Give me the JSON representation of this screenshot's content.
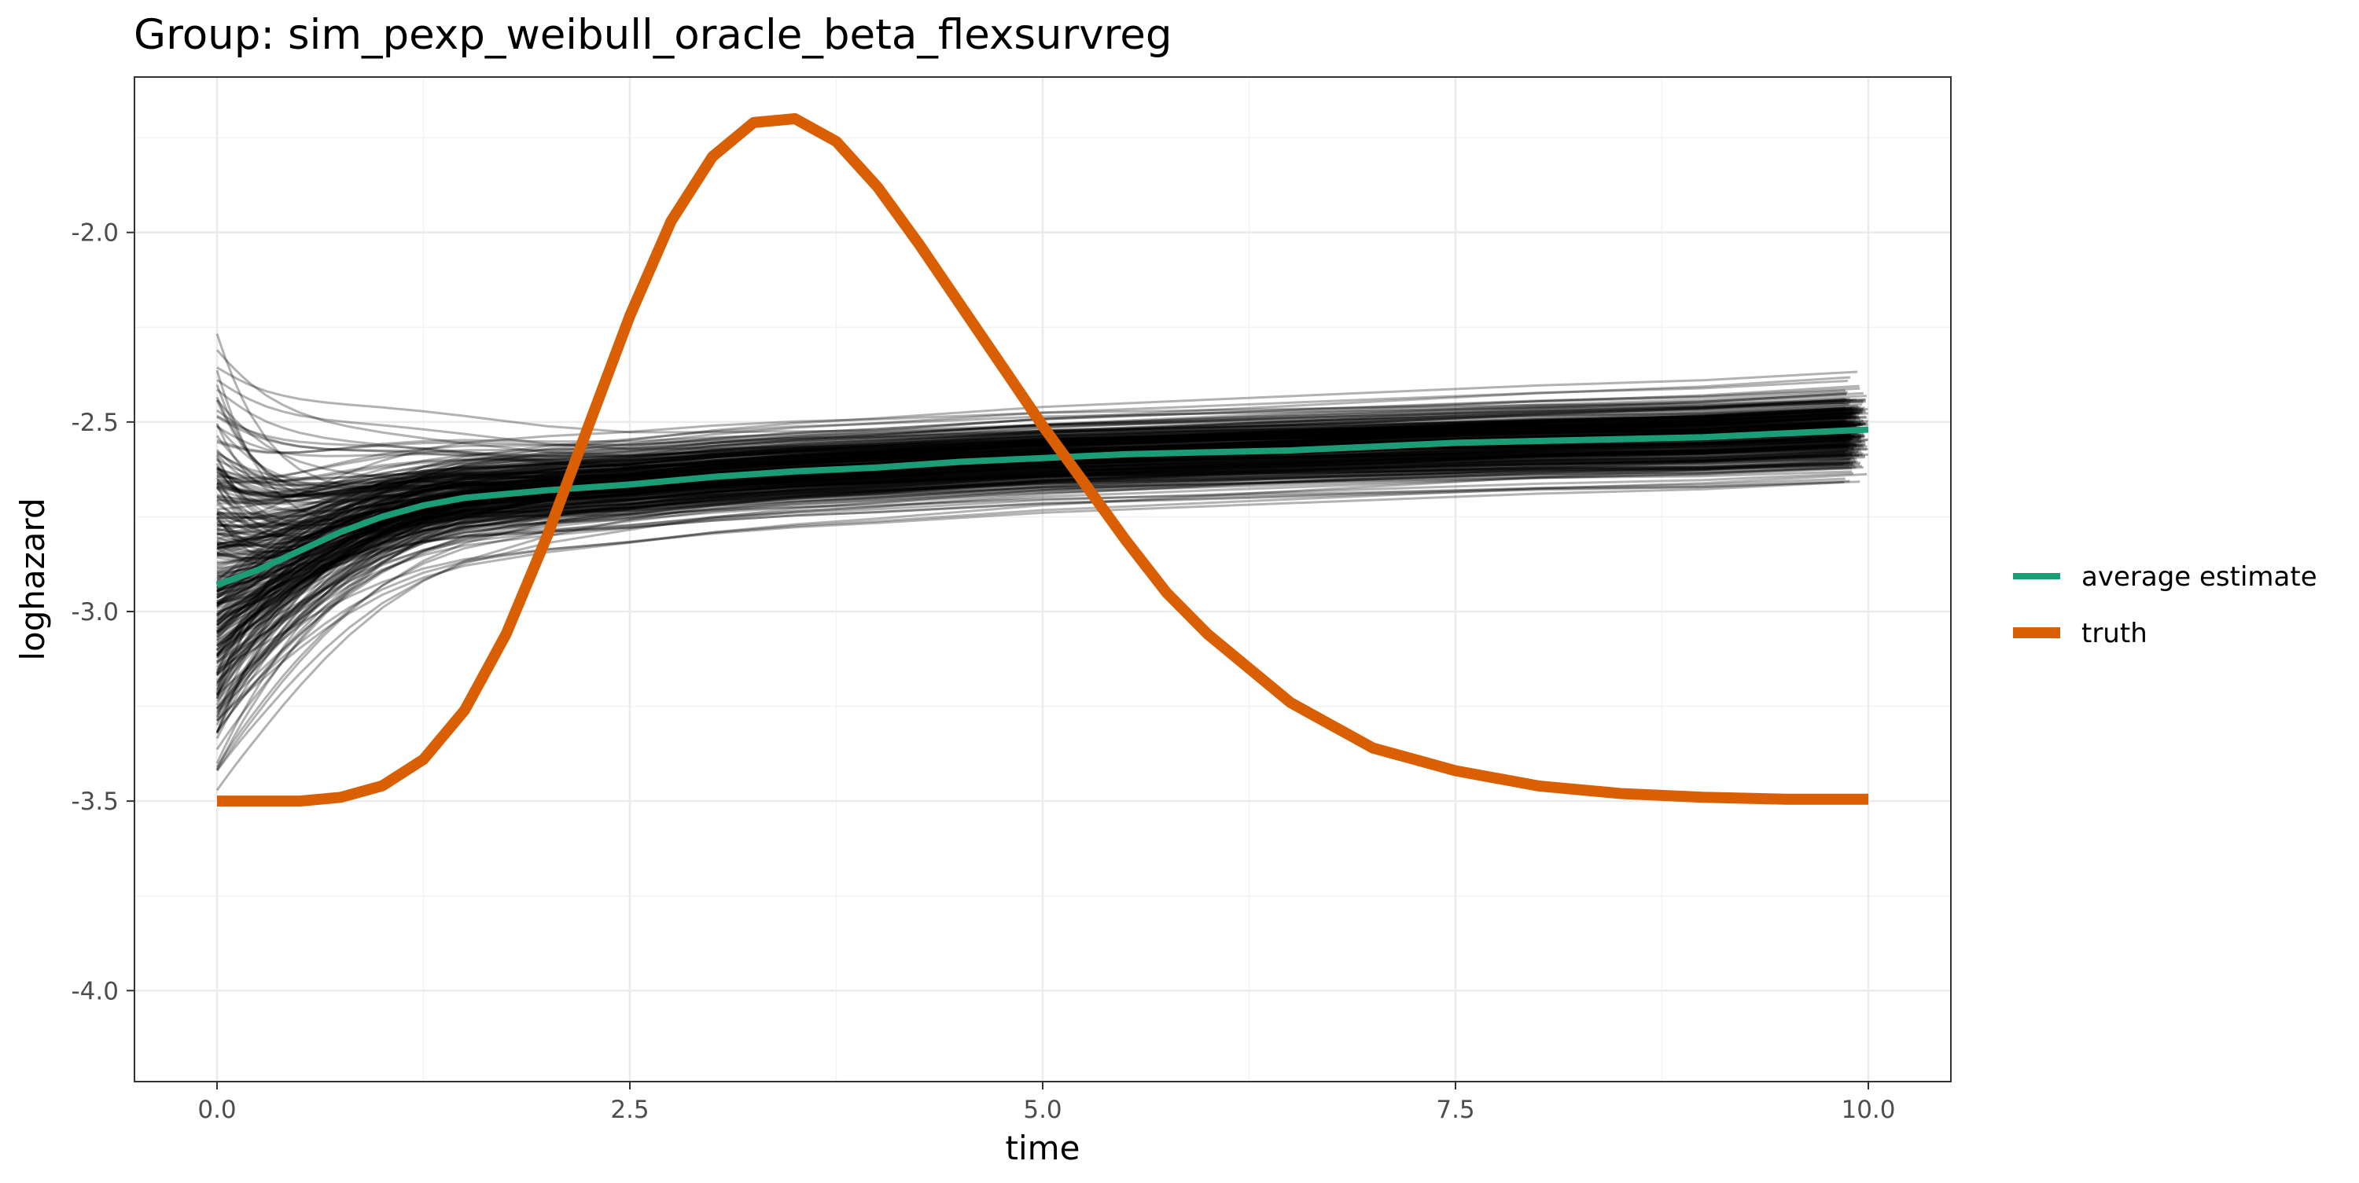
{
  "chart_data": {
    "type": "line",
    "title": "Group: sim_pexp_weibull_oracle_beta_flexsurvreg",
    "xlabel": "time",
    "ylabel": "loghazard",
    "xlim": [
      -0.5,
      10.5
    ],
    "ylim": [
      -4.24,
      -1.59
    ],
    "x_ticks": [
      0.0,
      2.5,
      5.0,
      7.5,
      10.0
    ],
    "x_tick_labels": [
      "0.0",
      "2.5",
      "5.0",
      "7.5",
      "10.0"
    ],
    "y_ticks": [
      -4.0,
      -3.5,
      -3.0,
      -2.5,
      -2.0
    ],
    "y_tick_labels": [
      "-4.0",
      "-3.5",
      "-3.0",
      "-2.5",
      "-2.0"
    ],
    "grid": true,
    "legend_position": "right",
    "series": [
      {
        "name": "average estimate",
        "color": "#1b9e77",
        "x": [
          0.0,
          0.25,
          0.5,
          0.75,
          1.0,
          1.25,
          1.5,
          1.75,
          2.0,
          2.5,
          3.0,
          3.5,
          4.0,
          4.5,
          5.0,
          5.5,
          6.0,
          6.5,
          7.0,
          7.5,
          8.0,
          8.5,
          9.0,
          9.5,
          10.0
        ],
        "values": [
          -2.93,
          -2.89,
          -2.84,
          -2.79,
          -2.75,
          -2.72,
          -2.7,
          -2.69,
          -2.68,
          -2.665,
          -2.645,
          -2.63,
          -2.62,
          -2.605,
          -2.595,
          -2.585,
          -2.58,
          -2.575,
          -2.565,
          -2.555,
          -2.55,
          -2.545,
          -2.54,
          -2.53,
          -2.52
        ]
      },
      {
        "name": "truth",
        "color": "#d95f02",
        "x": [
          0.0,
          0.25,
          0.5,
          0.75,
          1.0,
          1.25,
          1.5,
          1.75,
          2.0,
          2.25,
          2.5,
          2.75,
          3.0,
          3.25,
          3.5,
          3.75,
          4.0,
          4.25,
          4.5,
          4.75,
          5.0,
          5.25,
          5.5,
          5.75,
          6.0,
          6.5,
          7.0,
          7.5,
          8.0,
          8.5,
          9.0,
          9.5,
          10.0
        ],
        "values": [
          -3.5,
          -3.5,
          -3.5,
          -3.49,
          -3.46,
          -3.39,
          -3.26,
          -3.06,
          -2.8,
          -2.51,
          -2.22,
          -1.97,
          -1.8,
          -1.71,
          -1.7,
          -1.76,
          -1.88,
          -2.03,
          -2.19,
          -2.35,
          -2.51,
          -2.66,
          -2.81,
          -2.95,
          -3.06,
          -3.24,
          -3.36,
          -3.42,
          -3.46,
          -3.48,
          -3.49,
          -3.495,
          -3.495
        ]
      }
    ],
    "replicates": {
      "color": "#000000",
      "count": 300
    }
  }
}
